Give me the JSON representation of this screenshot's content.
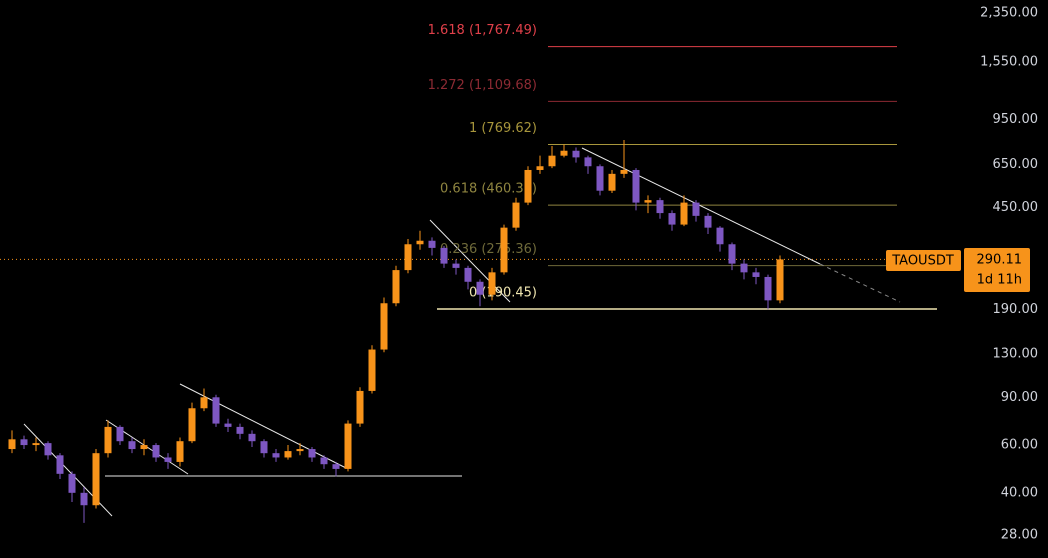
{
  "chart_data": {
    "type": "candlestick",
    "symbol": "TAOUSDT",
    "last_price": 290.11,
    "countdown": "1d 11h",
    "log_scale": true,
    "grid": false,
    "up_color": "#f7931a",
    "down_color": "#7e57c2",
    "ylim": [
      23,
      2625
    ],
    "yticks": [
      {
        "value": 2350,
        "label": "2,350.00"
      },
      {
        "value": 1550,
        "label": "1,550.00"
      },
      {
        "value": 950,
        "label": "950.00"
      },
      {
        "value": 650,
        "label": "650.00"
      },
      {
        "value": 450,
        "label": "450.00"
      },
      {
        "value": 190,
        "label": "190.00"
      },
      {
        "value": 130,
        "label": "130.00"
      },
      {
        "value": 90,
        "label": "90.00"
      },
      {
        "value": 60,
        "label": "60.00"
      },
      {
        "value": 40,
        "label": "40.00"
      },
      {
        "value": 28,
        "label": "28.00"
      }
    ],
    "open": [
      58,
      63,
      60,
      61,
      55,
      47,
      40,
      36,
      56,
      70,
      62,
      58,
      60,
      54,
      52,
      62,
      82,
      90,
      72,
      70,
      66,
      62,
      56,
      54,
      57,
      58,
      54,
      51,
      49,
      72,
      95,
      135,
      200,
      265,
      330,
      340,
      320,
      280,
      270,
      240,
      215,
      260,
      380,
      470,
      620,
      640,
      700,
      730,
      690,
      640,
      520,
      600,
      620,
      470,
      480,
      430,
      390,
      470,
      420,
      380,
      330,
      280,
      260,
      250,
      205
    ],
    "high": [
      68,
      65,
      64,
      62,
      56,
      48,
      42,
      58,
      74,
      71,
      64,
      63,
      61,
      56,
      64,
      86,
      97,
      92,
      75,
      72,
      68,
      63,
      58,
      60,
      61,
      59,
      55,
      52,
      74,
      98,
      140,
      210,
      275,
      345,
      370,
      350,
      325,
      290,
      275,
      245,
      270,
      390,
      490,
      640,
      700,
      760,
      770,
      750,
      700,
      650,
      620,
      800,
      630,
      500,
      490,
      440,
      500,
      480,
      430,
      385,
      335,
      290,
      270,
      255,
      300
    ],
    "low": [
      56,
      58,
      57,
      53,
      45,
      37,
      31,
      35,
      54,
      60,
      56,
      55,
      52,
      49,
      50,
      61,
      80,
      70,
      67,
      63,
      59,
      54,
      52,
      53,
      55,
      52,
      49,
      46,
      48,
      70,
      93,
      132,
      195,
      258,
      315,
      300,
      270,
      255,
      225,
      195,
      205,
      255,
      370,
      460,
      600,
      630,
      690,
      660,
      600,
      500,
      510,
      580,
      440,
      430,
      410,
      370,
      385,
      400,
      360,
      310,
      265,
      245,
      235,
      190,
      200
    ],
    "close": [
      63,
      60,
      61,
      55,
      47,
      40,
      36,
      56,
      70,
      62,
      58,
      60,
      54,
      52,
      62,
      82,
      90,
      72,
      70,
      66,
      62,
      56,
      54,
      57,
      58,
      54,
      51,
      49,
      72,
      95,
      135,
      200,
      265,
      330,
      340,
      320,
      280,
      270,
      240,
      215,
      260,
      380,
      470,
      620,
      640,
      700,
      730,
      690,
      640,
      520,
      600,
      620,
      470,
      480,
      430,
      390,
      470,
      420,
      380,
      330,
      280,
      260,
      250,
      205,
      290.11
    ],
    "fib_levels": [
      {
        "label": "1.618 (1,767.49)",
        "value": 1767.49,
        "color": "#e0404a"
      },
      {
        "label": "1.272 (1,109.68)",
        "value": 1109.68,
        "color": "#8c2a33"
      },
      {
        "label": "1 (769.62)",
        "value": 769.62,
        "color": "#a8963c"
      },
      {
        "label": "0.618 (460.30)",
        "value": 460.3,
        "color": "#8f8540"
      },
      {
        "label": "0.236 (275.36)",
        "value": 275.36,
        "color": "#6f6a3a"
      },
      {
        "label": "0 (190.45)",
        "value": 190.45,
        "color": "#f0e6b0"
      }
    ]
  }
}
